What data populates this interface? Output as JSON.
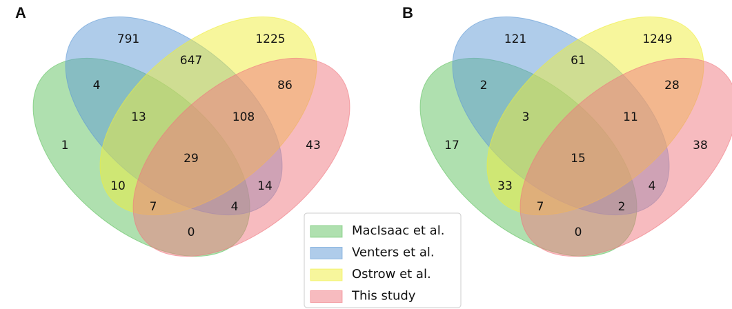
{
  "chart_data": [
    {
      "type": "venn",
      "title": "A",
      "values": [
        791,
        1225,
        647,
        4,
        86,
        13,
        108,
        1,
        43,
        29,
        10,
        14,
        7,
        4,
        0
      ]
    },
    {
      "type": "venn",
      "title": "B",
      "values": [
        121,
        1249,
        61,
        2,
        28,
        3,
        11,
        17,
        38,
        15,
        33,
        4,
        7,
        2,
        0
      ]
    }
  ],
  "legend": [
    {
      "name": "MacIsaac et al.",
      "color": "#5fc25f"
    },
    {
      "name": "Venters et al.",
      "color": "#5f9ad6"
    },
    {
      "name": "Ostrow et al.",
      "color": "#f0ee3a"
    },
    {
      "name": "This study",
      "color": "#f07880"
    }
  ]
}
